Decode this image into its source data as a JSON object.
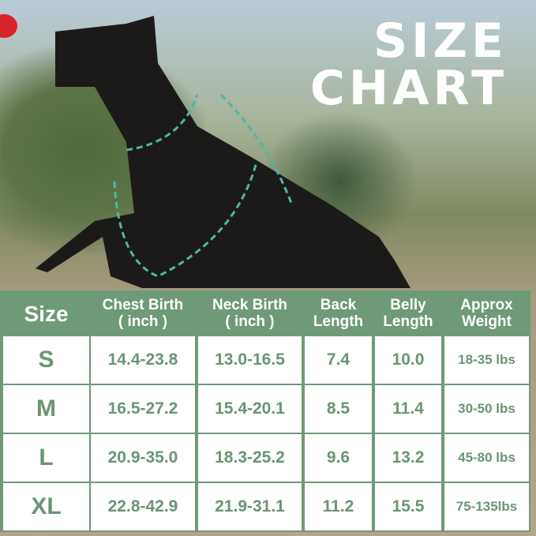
{
  "title": {
    "line1": "SIZE",
    "line2": "CHART"
  },
  "colors": {
    "header": "#6f9a78",
    "text": "#6b9474",
    "measure_line": "#4fb6a8"
  },
  "table": {
    "headers": [
      "Size",
      "Chest Birth\n( inch )",
      "Neck Birth\n( inch )",
      "Back\nLength",
      "Belly\nLength",
      "Approx\nWeight"
    ],
    "rows": [
      [
        "S",
        "14.4-23.8",
        "13.0-16.5",
        "7.4",
        "10.0",
        "18-35 lbs"
      ],
      [
        "M",
        "16.5-27.2",
        "15.4-20.1",
        "8.5",
        "11.4",
        "30-50 lbs"
      ],
      [
        "L",
        "20.9-35.0",
        "18.3-25.2",
        "9.6",
        "13.2",
        "45-80 lbs"
      ],
      [
        "XL",
        "22.8-42.9",
        "21.9-31.1",
        "11.2",
        "15.5",
        "75-135lbs"
      ]
    ]
  }
}
